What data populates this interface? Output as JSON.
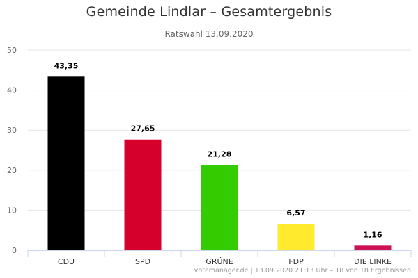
{
  "colors": {
    "CDU": "#000000",
    "SPD": "#d5002b",
    "GRÜNE": "#33cc00",
    "FDP": "#ffea2e",
    "DIE LINKE": "#cc1155"
  },
  "credits": "votemanager.de | 13.09.2020 21:13 Uhr – 18 von 18 Ergebnissen",
  "chart_data": {
    "type": "bar",
    "title": "Gemeinde Lindlar – Gesamtergebnis",
    "subtitle": "Ratswahl 13.09.2020",
    "categories": [
      "CDU",
      "SPD",
      "GRÜNE",
      "FDP",
      "DIE LINKE"
    ],
    "values": [
      43.35,
      27.65,
      21.28,
      6.57,
      1.16
    ],
    "value_labels": [
      "43,35",
      "27,65",
      "21,28",
      "6,57",
      "1,16"
    ],
    "ylim": [
      0,
      50
    ],
    "yticks": [
      0,
      10,
      20,
      30,
      40,
      50
    ],
    "xlabel": "",
    "ylabel": "",
    "grid": true,
    "legend": "none"
  }
}
